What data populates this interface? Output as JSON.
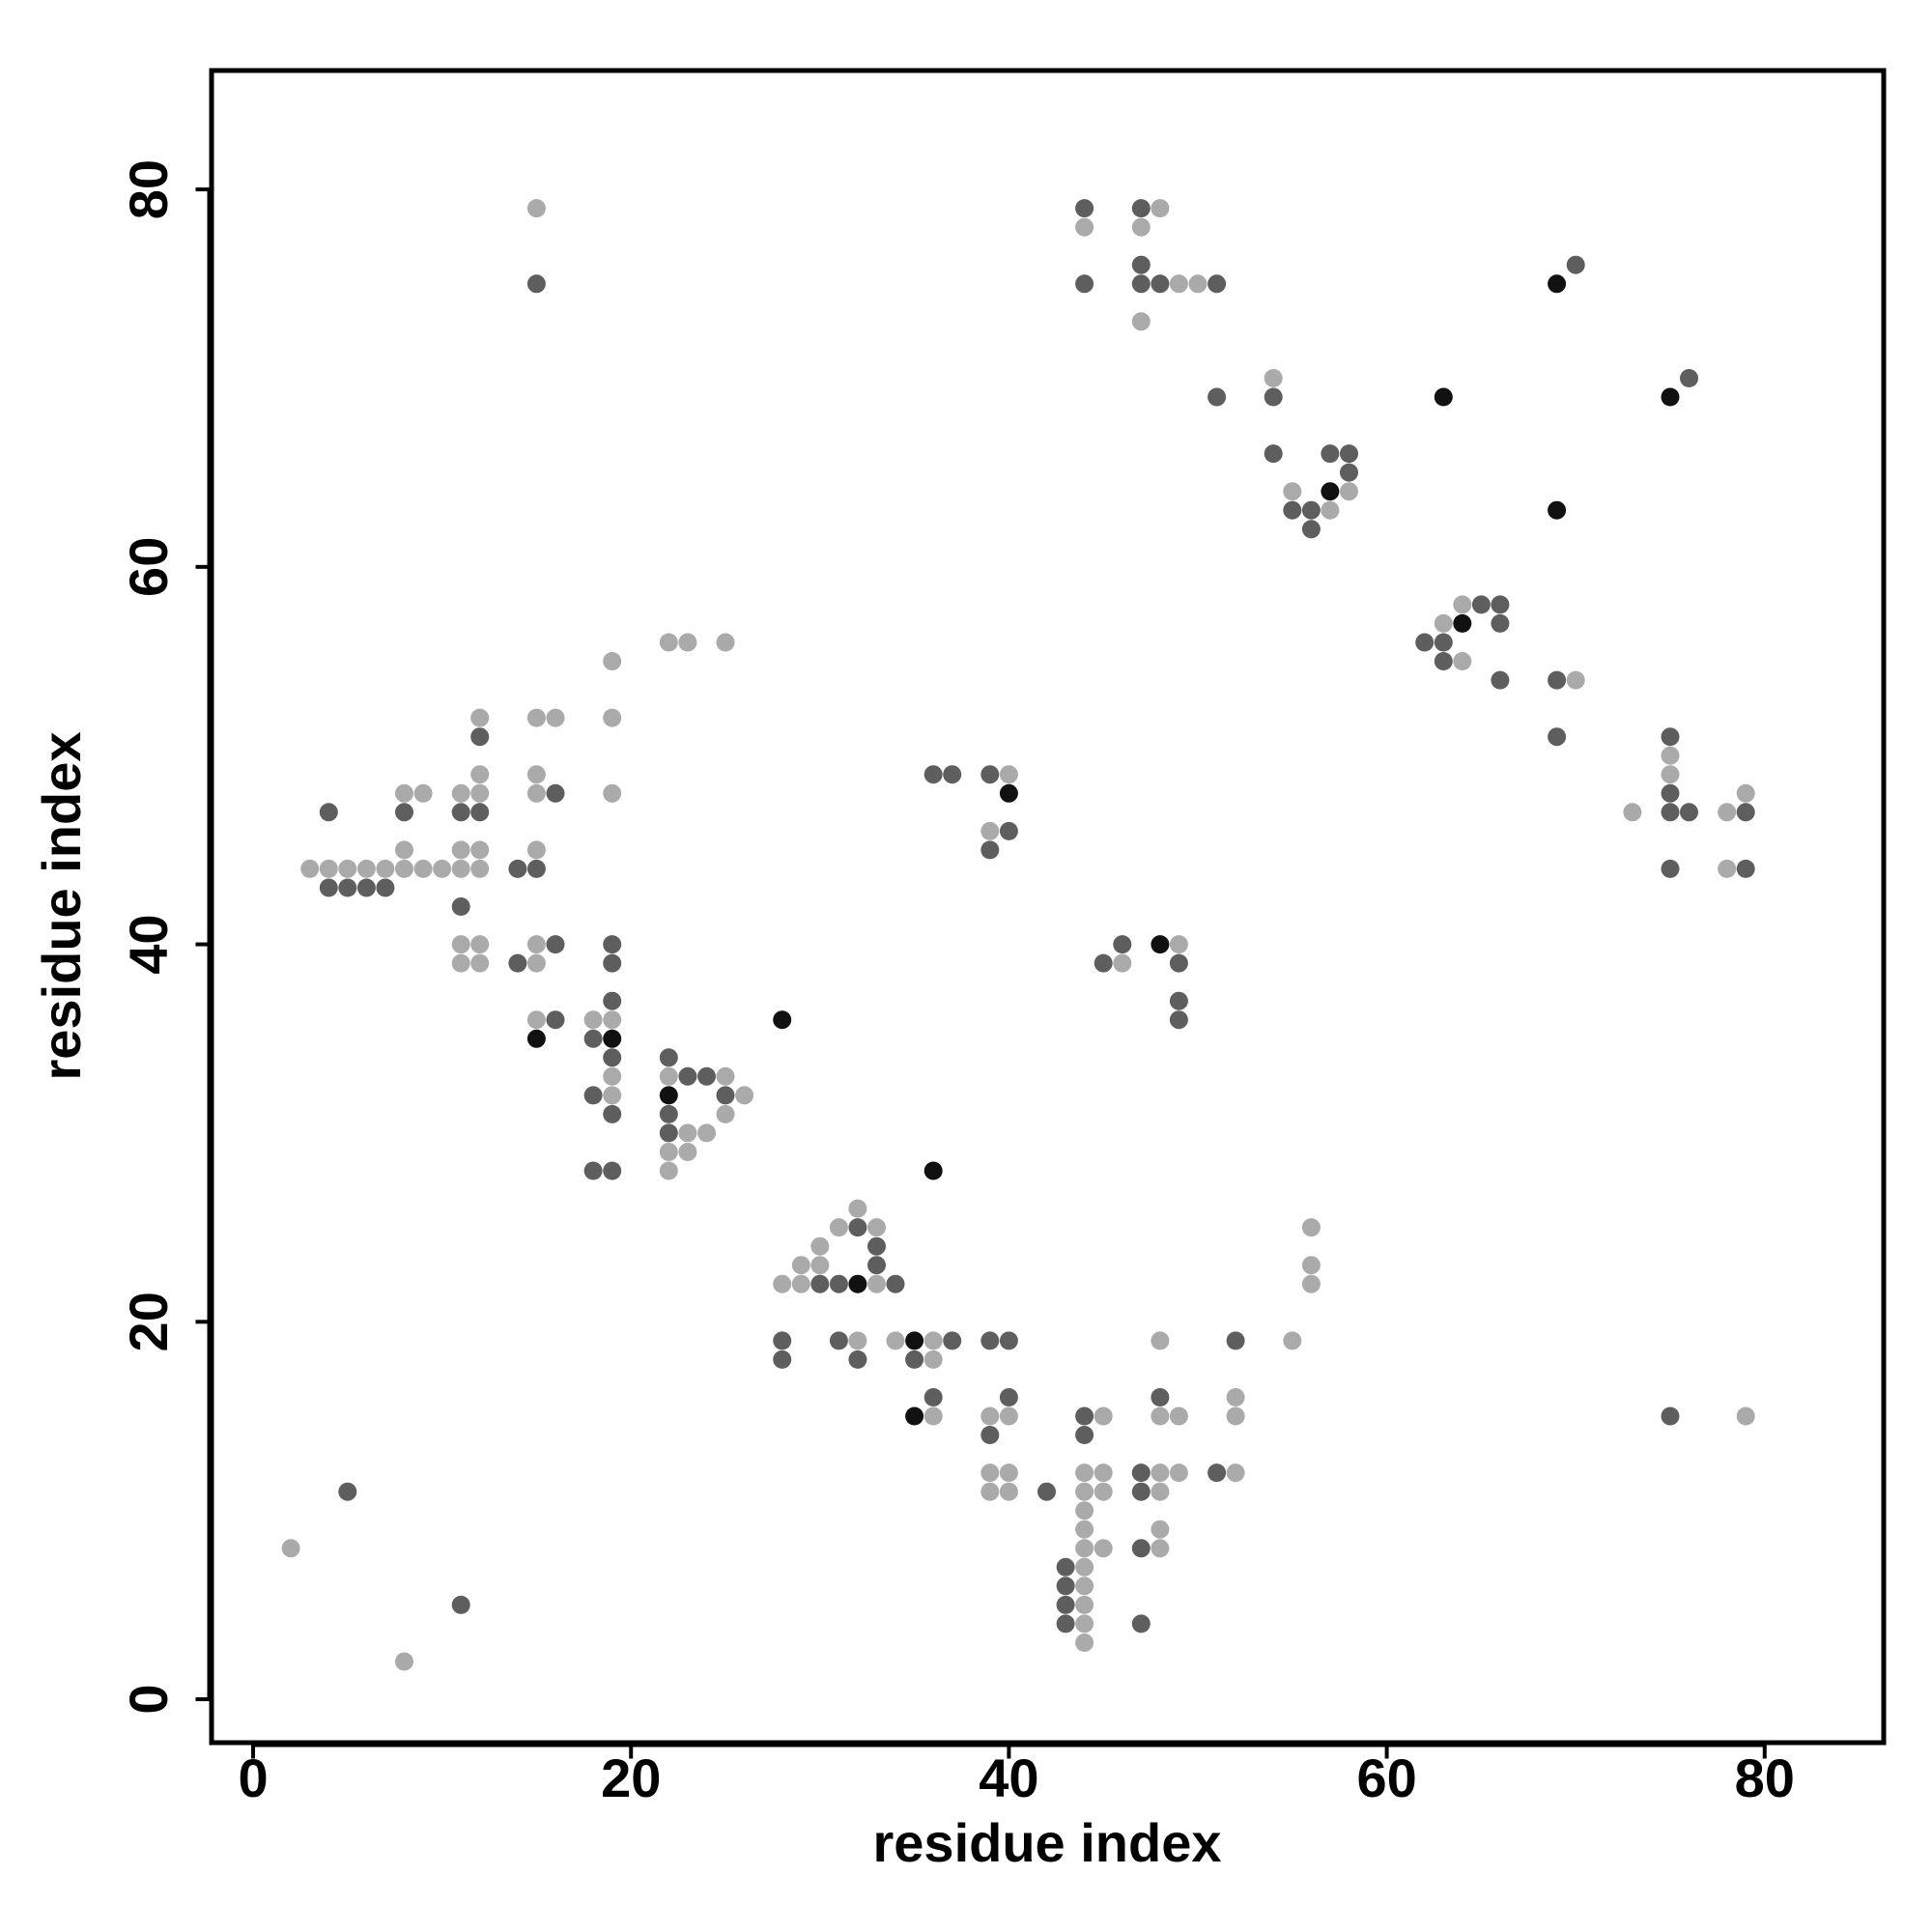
{
  "chart_data": {
    "type": "scatter",
    "title": "",
    "xlabel": "residue index",
    "ylabel": "residue index",
    "xlim": [
      -2.2,
      86.3
    ],
    "ylim": [
      -2.3,
      86.3
    ],
    "xticks": [
      0,
      20,
      40,
      60,
      80
    ],
    "yticks": [
      0,
      20,
      40,
      60,
      80
    ],
    "grid": false,
    "legend": "none",
    "colors": {
      "light": "#aaaaaa",
      "medium": "#5e5e5e",
      "dark": "#111111"
    },
    "series": [
      {
        "level": "light",
        "points": [
          [
            2,
            8
          ],
          [
            8,
            2
          ],
          [
            3,
            44
          ],
          [
            4,
            44
          ],
          [
            5,
            44
          ],
          [
            6,
            44
          ],
          [
            7,
            44
          ],
          [
            8,
            44
          ],
          [
            9,
            44
          ],
          [
            10,
            44
          ],
          [
            11,
            44
          ],
          [
            12,
            44
          ],
          [
            8,
            45
          ],
          [
            8,
            48
          ],
          [
            9,
            48
          ],
          [
            11,
            48
          ],
          [
            11,
            45
          ],
          [
            12,
            45
          ],
          [
            12,
            48
          ],
          [
            12,
            49
          ],
          [
            12,
            52
          ],
          [
            11,
            40
          ],
          [
            11,
            39
          ],
          [
            12,
            40
          ],
          [
            12,
            39
          ],
          [
            15,
            45
          ],
          [
            15,
            48
          ],
          [
            15,
            49
          ],
          [
            15,
            52
          ],
          [
            16,
            52
          ],
          [
            15,
            40
          ],
          [
            15,
            39
          ],
          [
            15,
            36
          ],
          [
            18,
            36
          ],
          [
            19,
            36
          ],
          [
            19,
            33
          ],
          [
            19,
            32
          ],
          [
            19,
            48
          ],
          [
            19,
            52
          ],
          [
            19,
            55
          ],
          [
            22,
            56
          ],
          [
            23,
            56
          ],
          [
            25,
            56
          ],
          [
            22,
            33
          ],
          [
            22,
            29
          ],
          [
            22,
            28
          ],
          [
            23,
            30
          ],
          [
            23,
            29
          ],
          [
            24,
            30
          ],
          [
            25,
            33
          ],
          [
            25,
            31
          ],
          [
            26,
            32
          ],
          [
            28,
            22
          ],
          [
            29,
            22
          ],
          [
            29,
            23
          ],
          [
            30,
            23
          ],
          [
            30,
            24
          ],
          [
            31,
            25
          ],
          [
            32,
            26
          ],
          [
            32,
            19
          ],
          [
            33,
            22
          ],
          [
            33,
            25
          ],
          [
            34,
            19
          ],
          [
            36,
            19
          ],
          [
            36,
            18
          ],
          [
            36,
            15
          ],
          [
            39,
            15
          ],
          [
            39,
            12
          ],
          [
            39,
            11
          ],
          [
            40,
            15
          ],
          [
            40,
            12
          ],
          [
            40,
            11
          ],
          [
            39,
            46
          ],
          [
            40,
            49
          ],
          [
            44,
            12
          ],
          [
            44,
            11
          ],
          [
            44,
            10
          ],
          [
            44,
            9
          ],
          [
            44,
            8
          ],
          [
            44,
            7
          ],
          [
            44,
            6
          ],
          [
            44,
            5
          ],
          [
            44,
            4
          ],
          [
            44,
            3
          ],
          [
            45,
            15
          ],
          [
            45,
            12
          ],
          [
            45,
            11
          ],
          [
            45,
            8
          ],
          [
            48,
            19
          ],
          [
            48,
            15
          ],
          [
            48,
            12
          ],
          [
            48,
            11
          ],
          [
            48,
            9
          ],
          [
            48,
            8
          ],
          [
            49,
            15
          ],
          [
            49,
            12
          ],
          [
            52,
            16
          ],
          [
            52,
            15
          ],
          [
            52,
            12
          ],
          [
            55,
            19
          ],
          [
            56,
            25
          ],
          [
            56,
            23
          ],
          [
            56,
            22
          ],
          [
            46,
            39
          ],
          [
            49,
            40
          ],
          [
            44,
            78
          ],
          [
            47,
            78
          ],
          [
            47,
            73
          ],
          [
            48,
            79
          ],
          [
            49,
            75
          ],
          [
            50,
            75
          ],
          [
            15,
            79
          ],
          [
            54,
            70
          ],
          [
            55,
            64
          ],
          [
            57,
            63
          ],
          [
            58,
            64
          ],
          [
            63,
            57
          ],
          [
            64,
            58
          ],
          [
            64,
            55
          ],
          [
            70,
            54
          ],
          [
            73,
            47
          ],
          [
            75,
            50
          ],
          [
            75,
            49
          ],
          [
            78,
            47
          ],
          [
            78,
            44
          ],
          [
            79,
            48
          ],
          [
            79,
            15
          ]
        ]
      },
      {
        "level": "medium",
        "points": [
          [
            4,
            47
          ],
          [
            4,
            43
          ],
          [
            5,
            43
          ],
          [
            6,
            43
          ],
          [
            7,
            43
          ],
          [
            8,
            47
          ],
          [
            11,
            47
          ],
          [
            11,
            42
          ],
          [
            12,
            47
          ],
          [
            12,
            51
          ],
          [
            14,
            44
          ],
          [
            14,
            39
          ],
          [
            15,
            44
          ],
          [
            16,
            48
          ],
          [
            16,
            40
          ],
          [
            16,
            36
          ],
          [
            18,
            35
          ],
          [
            18,
            32
          ],
          [
            18,
            28
          ],
          [
            19,
            40
          ],
          [
            19,
            39
          ],
          [
            19,
            37
          ],
          [
            19,
            34
          ],
          [
            19,
            31
          ],
          [
            19,
            28
          ],
          [
            22,
            34
          ],
          [
            22,
            31
          ],
          [
            22,
            30
          ],
          [
            23,
            33
          ],
          [
            24,
            33
          ],
          [
            25,
            32
          ],
          [
            28,
            19
          ],
          [
            28,
            18
          ],
          [
            30,
            22
          ],
          [
            31,
            22
          ],
          [
            31,
            19
          ],
          [
            32,
            25
          ],
          [
            32,
            18
          ],
          [
            33,
            24
          ],
          [
            33,
            23
          ],
          [
            34,
            22
          ],
          [
            35,
            18
          ],
          [
            36,
            16
          ],
          [
            37,
            19
          ],
          [
            36,
            49
          ],
          [
            37,
            49
          ],
          [
            39,
            49
          ],
          [
            39,
            45
          ],
          [
            40,
            46
          ],
          [
            39,
            19
          ],
          [
            40,
            19
          ],
          [
            39,
            14
          ],
          [
            40,
            16
          ],
          [
            42,
            11
          ],
          [
            43,
            7
          ],
          [
            43,
            6
          ],
          [
            43,
            5
          ],
          [
            43,
            4
          ],
          [
            44,
            15
          ],
          [
            44,
            14
          ],
          [
            45,
            39
          ],
          [
            46,
            40
          ],
          [
            47,
            12
          ],
          [
            47,
            11
          ],
          [
            47,
            8
          ],
          [
            47,
            4
          ],
          [
            48,
            16
          ],
          [
            49,
            39
          ],
          [
            49,
            37
          ],
          [
            49,
            36
          ],
          [
            51,
            12
          ],
          [
            52,
            19
          ],
          [
            5,
            11
          ],
          [
            11,
            5
          ],
          [
            15,
            75
          ],
          [
            44,
            79
          ],
          [
            44,
            75
          ],
          [
            47,
            79
          ],
          [
            47,
            76
          ],
          [
            47,
            75
          ],
          [
            48,
            75
          ],
          [
            51,
            75
          ],
          [
            51,
            69
          ],
          [
            54,
            69
          ],
          [
            54,
            66
          ],
          [
            55,
            63
          ],
          [
            56,
            63
          ],
          [
            56,
            62
          ],
          [
            57,
            66
          ],
          [
            58,
            66
          ],
          [
            58,
            65
          ],
          [
            62,
            56
          ],
          [
            63,
            56
          ],
          [
            63,
            55
          ],
          [
            65,
            58
          ],
          [
            66,
            58
          ],
          [
            66,
            57
          ],
          [
            66,
            54
          ],
          [
            69,
            54
          ],
          [
            69,
            51
          ],
          [
            70,
            76
          ],
          [
            76,
            70
          ],
          [
            75,
            51
          ],
          [
            75,
            48
          ],
          [
            75,
            47
          ],
          [
            76,
            47
          ],
          [
            75,
            44
          ],
          [
            79,
            47
          ],
          [
            79,
            44
          ],
          [
            75,
            15
          ]
        ]
      },
      {
        "level": "dark",
        "points": [
          [
            15,
            35
          ],
          [
            19,
            35
          ],
          [
            22,
            32
          ],
          [
            28,
            36
          ],
          [
            32,
            22
          ],
          [
            35,
            19
          ],
          [
            35,
            15
          ],
          [
            36,
            28
          ],
          [
            40,
            48
          ],
          [
            48,
            40
          ],
          [
            57,
            64
          ],
          [
            63,
            69
          ],
          [
            64,
            57
          ],
          [
            69,
            75
          ],
          [
            69,
            63
          ],
          [
            75,
            69
          ]
        ]
      }
    ]
  }
}
